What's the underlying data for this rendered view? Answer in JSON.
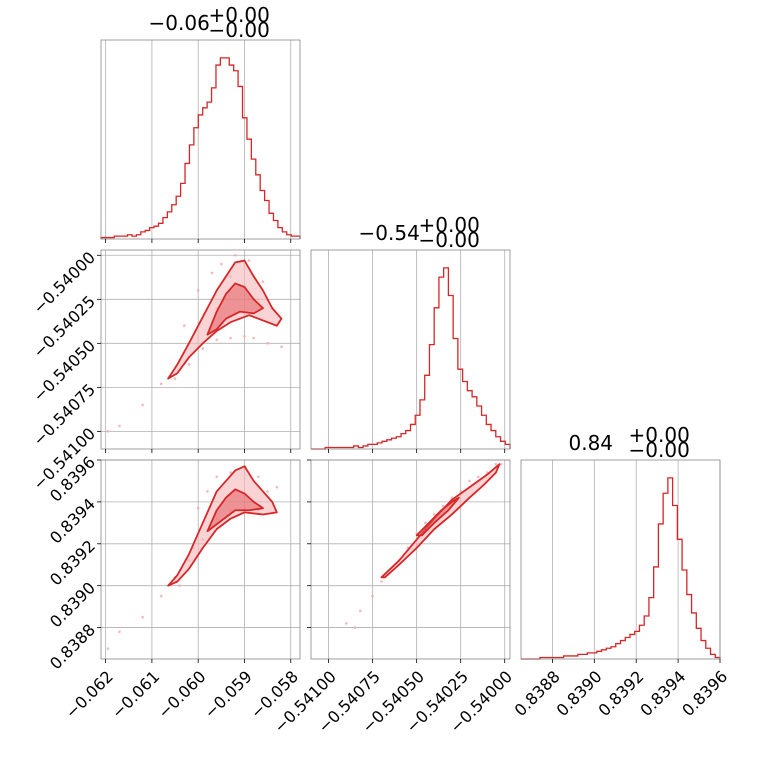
{
  "chart_data": {
    "type": "corner",
    "color": "#d62728",
    "parameters": [
      {
        "title": {
          "main": "−0.06",
          "plus": "+0.00",
          "minus": "−0.00"
        },
        "range": [
          -0.0621,
          -0.0578
        ],
        "ticks": [
          -0.062,
          -0.061,
          -0.06,
          -0.059,
          -0.058
        ],
        "tick_labels": [
          "−0.062",
          "−0.061",
          "−0.060",
          "−0.059",
          "−0.058"
        ],
        "histogram": [
          1,
          1,
          1,
          2,
          2,
          2,
          3,
          2,
          3,
          5,
          6,
          8,
          9,
          11,
          15,
          19,
          24,
          30,
          39,
          53,
          66,
          78,
          87,
          92,
          96,
          106,
          122,
          127,
          127,
          122,
          118,
          107,
          85,
          70,
          56,
          45,
          34,
          27,
          18,
          13,
          8,
          5,
          3,
          2,
          2
        ]
      },
      {
        "title": {
          "main": "−0.54",
          "plus": "+0.00",
          "minus": "−0.00"
        },
        "range": [
          -0.5411,
          -0.53997
        ],
        "ticks": [
          -0.541,
          -0.54075,
          -0.5405,
          -0.54025,
          -0.54
        ],
        "tick_labels": [
          "−0.54100",
          "−0.54075",
          "−0.54050",
          "−0.54025",
          "−0.54000"
        ],
        "histogram": [
          0,
          0,
          0,
          1,
          1,
          1,
          1,
          1,
          1,
          2,
          1,
          2,
          3,
          3,
          4,
          5,
          6,
          7,
          8,
          10,
          12,
          16,
          22,
          32,
          48,
          68,
          92,
          112,
          118,
          100,
          72,
          52,
          44,
          38,
          34,
          28,
          22,
          16,
          12,
          8,
          5,
          3
        ]
      },
      {
        "title": {
          "main": "0.84",
          "plus": "+0.00",
          "minus": "−0.00"
        },
        "range": [
          0.83865,
          0.8396
        ],
        "ticks": [
          0.8388,
          0.839,
          0.8392,
          0.8394,
          0.8396
        ],
        "tick_labels": [
          "0.8388",
          "0.8390",
          "0.8392",
          "0.8394",
          "0.8396"
        ],
        "histogram": [
          0,
          0,
          0,
          0,
          1,
          1,
          1,
          1,
          1,
          2,
          2,
          2,
          3,
          3,
          4,
          4,
          5,
          6,
          7,
          8,
          10,
          12,
          14,
          16,
          18,
          22,
          28,
          40,
          60,
          88,
          108,
          118,
          100,
          78,
          58,
          42,
          30,
          20,
          12,
          7,
          3,
          1
        ]
      }
    ],
    "pairs": [
      {
        "x_param": 0,
        "y_param": 1,
        "points": [
          [
            -0.06195,
            -0.541
          ],
          [
            -0.0617,
            -0.54097
          ],
          [
            -0.0612,
            -0.54085
          ],
          [
            -0.0608,
            -0.54073
          ],
          [
            -0.0605,
            -0.5407
          ],
          [
            -0.0602,
            -0.54062
          ],
          [
            -0.0599,
            -0.54053
          ],
          [
            -0.0596,
            -0.54048
          ],
          [
            -0.0593,
            -0.54047
          ],
          [
            -0.059,
            -0.54046
          ],
          [
            -0.0588,
            -0.54047
          ],
          [
            -0.0585,
            -0.5405
          ],
          [
            -0.0582,
            -0.54052
          ],
          [
            -0.06,
            -0.5402
          ],
          [
            -0.0597,
            -0.5401
          ],
          [
            -0.0595,
            -0.54005
          ],
          [
            -0.0593,
            -0.54012
          ],
          [
            -0.059,
            -0.54018
          ],
          [
            -0.0587,
            -0.54025
          ],
          [
            -0.0584,
            -0.5403
          ],
          [
            -0.0603,
            -0.5404
          ],
          [
            -0.0596,
            -0.5403
          ],
          [
            -0.0592,
            -0.54
          ],
          [
            -0.0589,
            -0.54003
          ],
          [
            -0.0586,
            -0.54015
          ]
        ],
        "outer_contour": [
          [
            -0.06065,
            -0.5407
          ],
          [
            -0.06045,
            -0.54062
          ],
          [
            -0.0602,
            -0.5405
          ],
          [
            -0.06,
            -0.5404
          ],
          [
            -0.0598,
            -0.5403
          ],
          [
            -0.0596,
            -0.5402
          ],
          [
            -0.0594,
            -0.54012
          ],
          [
            -0.0592,
            -0.54004
          ],
          [
            -0.059,
            -0.54003
          ],
          [
            -0.0588,
            -0.54012
          ],
          [
            -0.0586,
            -0.5402
          ],
          [
            -0.0584,
            -0.5403
          ],
          [
            -0.0582,
            -0.54036
          ],
          [
            -0.0583,
            -0.5404
          ],
          [
            -0.0586,
            -0.54037
          ],
          [
            -0.0589,
            -0.54034
          ],
          [
            -0.0593,
            -0.54038
          ],
          [
            -0.0596,
            -0.54043
          ],
          [
            -0.0599,
            -0.5405
          ],
          [
            -0.0602,
            -0.54058
          ],
          [
            -0.06045,
            -0.54067
          ]
        ],
        "inner_contour": [
          [
            -0.0598,
            -0.54045
          ],
          [
            -0.0596,
            -0.54032
          ],
          [
            -0.0594,
            -0.54022
          ],
          [
            -0.0592,
            -0.54016
          ],
          [
            -0.059,
            -0.54018
          ],
          [
            -0.0588,
            -0.54025
          ],
          [
            -0.0586,
            -0.5403
          ],
          [
            -0.0588,
            -0.54033
          ],
          [
            -0.0591,
            -0.54032
          ],
          [
            -0.0594,
            -0.54036
          ],
          [
            -0.0596,
            -0.54042
          ]
        ]
      },
      {
        "x_param": 0,
        "y_param": 2,
        "points": [
          [
            -0.06195,
            0.8387
          ],
          [
            -0.0617,
            0.83878
          ],
          [
            -0.0612,
            0.83885
          ],
          [
            -0.0608,
            0.83895
          ],
          [
            -0.0605,
            0.83904
          ],
          [
            -0.0602,
            0.83912
          ],
          [
            -0.0599,
            0.83922
          ],
          [
            -0.0596,
            0.83932
          ],
          [
            -0.0593,
            0.83936
          ],
          [
            -0.059,
            0.83937
          ],
          [
            -0.0587,
            0.83936
          ],
          [
            -0.0584,
            0.83935
          ],
          [
            -0.0596,
            0.83952
          ],
          [
            -0.0593,
            0.83954
          ],
          [
            -0.059,
            0.83957
          ],
          [
            -0.0587,
            0.83952
          ],
          [
            -0.0585,
            0.83945
          ],
          [
            -0.06,
            0.83937
          ],
          [
            -0.0598,
            0.83945
          ],
          [
            -0.0592,
            0.83945
          ],
          [
            -0.0583,
            0.83947
          ],
          [
            -0.0604,
            0.839
          ],
          [
            -0.0601,
            0.83918
          ]
        ],
        "outer_contour": [
          [
            -0.06065,
            0.839
          ],
          [
            -0.06045,
            0.83905
          ],
          [
            -0.0602,
            0.83915
          ],
          [
            -0.06,
            0.83925
          ],
          [
            -0.0598,
            0.83935
          ],
          [
            -0.0596,
            0.83945
          ],
          [
            -0.0594,
            0.8395
          ],
          [
            -0.0592,
            0.83955
          ],
          [
            -0.059,
            0.83957
          ],
          [
            -0.0588,
            0.8395
          ],
          [
            -0.0586,
            0.83945
          ],
          [
            -0.0584,
            0.8394
          ],
          [
            -0.0583,
            0.83935
          ],
          [
            -0.0586,
            0.83934
          ],
          [
            -0.059,
            0.83935
          ],
          [
            -0.0593,
            0.83932
          ],
          [
            -0.0596,
            0.83927
          ],
          [
            -0.0599,
            0.83918
          ],
          [
            -0.0602,
            0.83908
          ],
          [
            -0.06045,
            0.83902
          ]
        ],
        "inner_contour": [
          [
            -0.0598,
            0.83926
          ],
          [
            -0.0596,
            0.83936
          ],
          [
            -0.0594,
            0.83942
          ],
          [
            -0.0592,
            0.83946
          ],
          [
            -0.059,
            0.83944
          ],
          [
            -0.0588,
            0.8394
          ],
          [
            -0.0586,
            0.83937
          ],
          [
            -0.0589,
            0.83936
          ],
          [
            -0.0592,
            0.83936
          ],
          [
            -0.0595,
            0.83931
          ]
        ]
      },
      {
        "x_param": 1,
        "y_param": 2,
        "points": [
          [
            -0.5409,
            0.83882
          ],
          [
            -0.54082,
            0.83888
          ],
          [
            -0.54075,
            0.83895
          ],
          [
            -0.54068,
            0.83905
          ],
          [
            -0.5406,
            0.83912
          ],
          [
            -0.54055,
            0.83918
          ],
          [
            -0.5405,
            0.83925
          ],
          [
            -0.54045,
            0.8393
          ],
          [
            -0.5404,
            0.83934
          ],
          [
            -0.54035,
            0.83938
          ],
          [
            -0.5403,
            0.83942
          ],
          [
            -0.54025,
            0.83945
          ],
          [
            -0.5402,
            0.8395
          ],
          [
            -0.54015,
            0.83952
          ],
          [
            -0.5401,
            0.83954
          ],
          [
            -0.54005,
            0.83958
          ],
          [
            -0.54002,
            0.83958
          ],
          [
            -0.54085,
            0.8388
          ],
          [
            -0.5407,
            0.83902
          ]
        ],
        "outer_contour": [
          [
            -0.5407,
            0.83904
          ],
          [
            -0.5406,
            0.83912
          ],
          [
            -0.5405,
            0.83922
          ],
          [
            -0.5404,
            0.83932
          ],
          [
            -0.5403,
            0.83941
          ],
          [
            -0.5402,
            0.83947
          ],
          [
            -0.5401,
            0.83953
          ],
          [
            -0.54003,
            0.83958
          ],
          [
            -0.54005,
            0.83954
          ],
          [
            -0.54012,
            0.83948
          ],
          [
            -0.5402,
            0.83942
          ],
          [
            -0.5403,
            0.83934
          ],
          [
            -0.5404,
            0.83927
          ],
          [
            -0.5405,
            0.83918
          ],
          [
            -0.5406,
            0.8391
          ],
          [
            -0.54068,
            0.83904
          ]
        ],
        "inner_contour": [
          [
            -0.5405,
            0.83924
          ],
          [
            -0.54043,
            0.8393
          ],
          [
            -0.54036,
            0.83936
          ],
          [
            -0.5403,
            0.8394
          ],
          [
            -0.54026,
            0.83942
          ],
          [
            -0.54032,
            0.83936
          ],
          [
            -0.5404,
            0.8393
          ],
          [
            -0.54047,
            0.83924
          ]
        ]
      }
    ]
  }
}
